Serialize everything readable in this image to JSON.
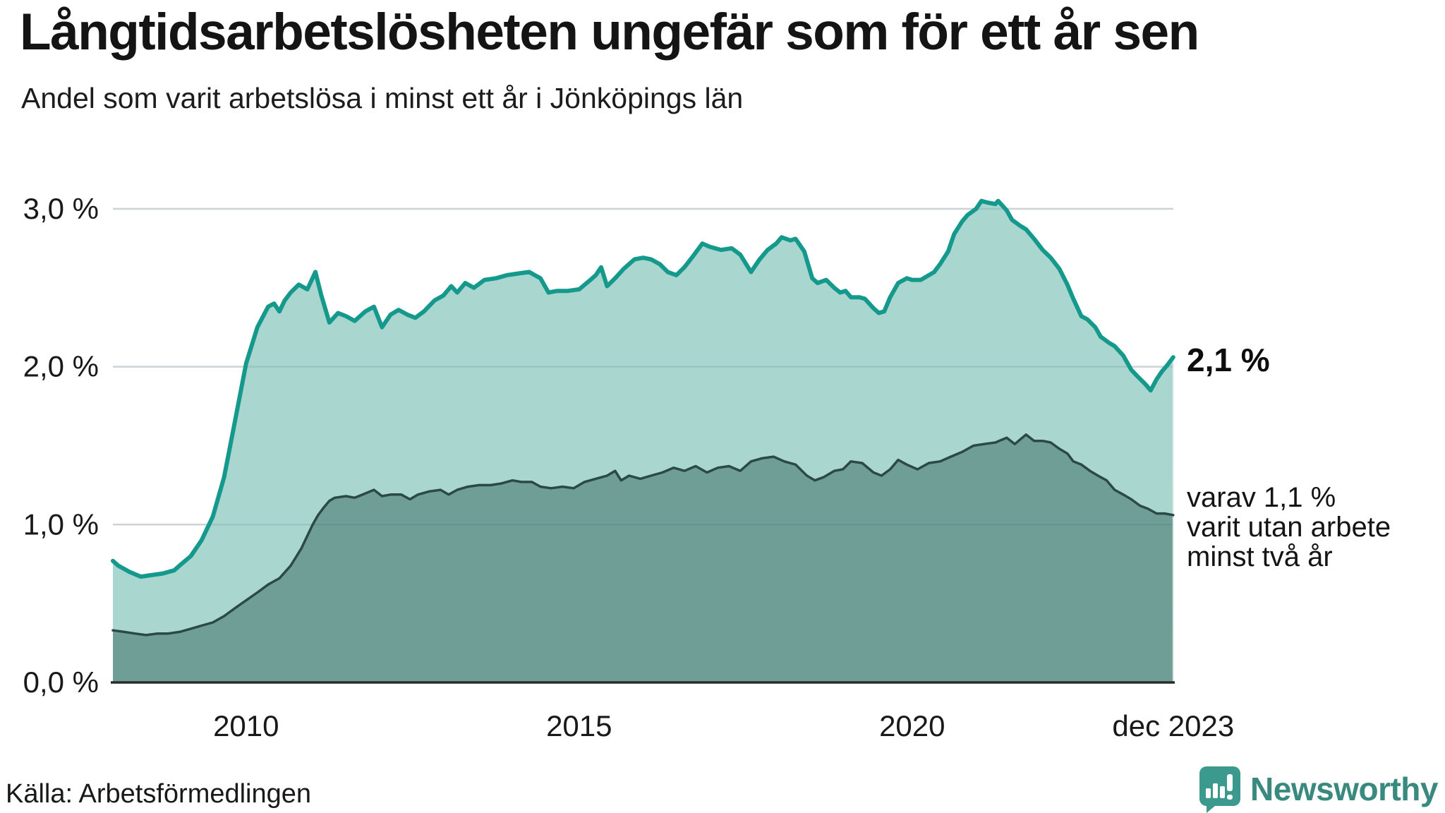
{
  "chart_data": {
    "type": "area",
    "title": "Långtidsarbetslösheten ungefär som för ett år sen",
    "subtitle": "Andel som varit arbetslösa i minst ett år i Jönköpings län",
    "unit": "%",
    "x_axis": {
      "start": 2008,
      "end": 2023.92,
      "ticks": [
        {
          "label": "2010",
          "year": 2010
        },
        {
          "label": "2015",
          "year": 2015
        },
        {
          "label": "2020",
          "year": 2020
        },
        {
          "label": "dec 2023",
          "year": 2023.92
        }
      ]
    },
    "y_axis": {
      "min": 0,
      "max": 3.05,
      "grid": true,
      "ticks": [
        {
          "label": "3,0 %",
          "value": 3
        },
        {
          "label": "2,0 %",
          "value": 2
        },
        {
          "label": "1,0 %",
          "value": 1
        },
        {
          "label": "0,0 %",
          "value": 0
        }
      ]
    },
    "series": [
      {
        "name": "Andel arbetslösa minst ett år",
        "line_color": "#14998c",
        "fill_color": "#a9d6cf",
        "points": [
          [
            2008.0,
            0.77
          ],
          [
            2008.08,
            0.74
          ],
          [
            2008.25,
            0.7
          ],
          [
            2008.42,
            0.67
          ],
          [
            2008.58,
            0.68
          ],
          [
            2008.75,
            0.69
          ],
          [
            2008.92,
            0.71
          ],
          [
            2009.0,
            0.74
          ],
          [
            2009.17,
            0.8
          ],
          [
            2009.33,
            0.9
          ],
          [
            2009.5,
            1.05
          ],
          [
            2009.67,
            1.3
          ],
          [
            2009.83,
            1.65
          ],
          [
            2010.0,
            2.02
          ],
          [
            2010.17,
            2.25
          ],
          [
            2010.33,
            2.38
          ],
          [
            2010.42,
            2.4
          ],
          [
            2010.5,
            2.35
          ],
          [
            2010.58,
            2.42
          ],
          [
            2010.67,
            2.47
          ],
          [
            2010.79,
            2.52
          ],
          [
            2010.92,
            2.49
          ],
          [
            2011.04,
            2.6
          ],
          [
            2011.13,
            2.45
          ],
          [
            2011.25,
            2.28
          ],
          [
            2011.38,
            2.34
          ],
          [
            2011.5,
            2.32
          ],
          [
            2011.63,
            2.29
          ],
          [
            2011.79,
            2.35
          ],
          [
            2011.92,
            2.38
          ],
          [
            2012.04,
            2.25
          ],
          [
            2012.17,
            2.33
          ],
          [
            2012.29,
            2.36
          ],
          [
            2012.42,
            2.33
          ],
          [
            2012.54,
            2.31
          ],
          [
            2012.67,
            2.35
          ],
          [
            2012.83,
            2.42
          ],
          [
            2012.96,
            2.45
          ],
          [
            2013.08,
            2.51
          ],
          [
            2013.17,
            2.47
          ],
          [
            2013.29,
            2.53
          ],
          [
            2013.42,
            2.5
          ],
          [
            2013.58,
            2.55
          ],
          [
            2013.75,
            2.56
          ],
          [
            2013.92,
            2.58
          ],
          [
            2014.08,
            2.59
          ],
          [
            2014.25,
            2.6
          ],
          [
            2014.42,
            2.56
          ],
          [
            2014.54,
            2.47
          ],
          [
            2014.67,
            2.48
          ],
          [
            2014.83,
            2.48
          ],
          [
            2015.0,
            2.49
          ],
          [
            2015.17,
            2.55
          ],
          [
            2015.25,
            2.58
          ],
          [
            2015.33,
            2.63
          ],
          [
            2015.42,
            2.51
          ],
          [
            2015.54,
            2.56
          ],
          [
            2015.67,
            2.62
          ],
          [
            2015.83,
            2.68
          ],
          [
            2015.96,
            2.69
          ],
          [
            2016.08,
            2.68
          ],
          [
            2016.21,
            2.65
          ],
          [
            2016.33,
            2.6
          ],
          [
            2016.46,
            2.58
          ],
          [
            2016.58,
            2.63
          ],
          [
            2016.71,
            2.7
          ],
          [
            2016.85,
            2.78
          ],
          [
            2016.96,
            2.76
          ],
          [
            2017.13,
            2.74
          ],
          [
            2017.29,
            2.75
          ],
          [
            2017.42,
            2.71
          ],
          [
            2017.58,
            2.6
          ],
          [
            2017.71,
            2.68
          ],
          [
            2017.83,
            2.74
          ],
          [
            2017.96,
            2.78
          ],
          [
            2018.04,
            2.82
          ],
          [
            2018.17,
            2.8
          ],
          [
            2018.25,
            2.81
          ],
          [
            2018.38,
            2.73
          ],
          [
            2018.5,
            2.56
          ],
          [
            2018.58,
            2.53
          ],
          [
            2018.71,
            2.55
          ],
          [
            2018.83,
            2.5
          ],
          [
            2018.92,
            2.47
          ],
          [
            2019.0,
            2.48
          ],
          [
            2019.08,
            2.44
          ],
          [
            2019.21,
            2.44
          ],
          [
            2019.29,
            2.43
          ],
          [
            2019.42,
            2.37
          ],
          [
            2019.5,
            2.34
          ],
          [
            2019.58,
            2.35
          ],
          [
            2019.67,
            2.44
          ],
          [
            2019.79,
            2.53
          ],
          [
            2019.92,
            2.56
          ],
          [
            2020.0,
            2.55
          ],
          [
            2020.13,
            2.55
          ],
          [
            2020.25,
            2.58
          ],
          [
            2020.33,
            2.6
          ],
          [
            2020.42,
            2.65
          ],
          [
            2020.54,
            2.73
          ],
          [
            2020.63,
            2.84
          ],
          [
            2020.75,
            2.92
          ],
          [
            2020.83,
            2.96
          ],
          [
            2020.96,
            3.0
          ],
          [
            2021.04,
            3.05
          ],
          [
            2021.13,
            3.04
          ],
          [
            2021.25,
            3.03
          ],
          [
            2021.29,
            3.05
          ],
          [
            2021.42,
            2.99
          ],
          [
            2021.5,
            2.93
          ],
          [
            2021.63,
            2.89
          ],
          [
            2021.71,
            2.87
          ],
          [
            2021.83,
            2.81
          ],
          [
            2021.96,
            2.74
          ],
          [
            2022.08,
            2.69
          ],
          [
            2022.21,
            2.62
          ],
          [
            2022.33,
            2.52
          ],
          [
            2022.42,
            2.43
          ],
          [
            2022.54,
            2.32
          ],
          [
            2022.63,
            2.3
          ],
          [
            2022.75,
            2.25
          ],
          [
            2022.83,
            2.19
          ],
          [
            2022.96,
            2.15
          ],
          [
            2023.04,
            2.13
          ],
          [
            2023.17,
            2.07
          ],
          [
            2023.29,
            1.98
          ],
          [
            2023.38,
            1.94
          ],
          [
            2023.5,
            1.89
          ],
          [
            2023.58,
            1.85
          ],
          [
            2023.67,
            1.92
          ],
          [
            2023.75,
            1.97
          ],
          [
            2023.83,
            2.01
          ],
          [
            2023.92,
            2.06
          ]
        ]
      },
      {
        "name": "Andel arbetslösa minst två år",
        "line_color": "#2b4a45",
        "fill_color": "#6f9e97",
        "points": [
          [
            2008.0,
            0.33
          ],
          [
            2008.17,
            0.32
          ],
          [
            2008.33,
            0.31
          ],
          [
            2008.5,
            0.3
          ],
          [
            2008.67,
            0.31
          ],
          [
            2008.83,
            0.31
          ],
          [
            2009.0,
            0.32
          ],
          [
            2009.17,
            0.34
          ],
          [
            2009.33,
            0.36
          ],
          [
            2009.5,
            0.38
          ],
          [
            2009.67,
            0.42
          ],
          [
            2009.83,
            0.47
          ],
          [
            2010.0,
            0.52
          ],
          [
            2010.17,
            0.57
          ],
          [
            2010.33,
            0.62
          ],
          [
            2010.5,
            0.66
          ],
          [
            2010.67,
            0.74
          ],
          [
            2010.83,
            0.85
          ],
          [
            2011.0,
            1.0
          ],
          [
            2011.08,
            1.06
          ],
          [
            2011.17,
            1.11
          ],
          [
            2011.25,
            1.15
          ],
          [
            2011.33,
            1.17
          ],
          [
            2011.5,
            1.18
          ],
          [
            2011.63,
            1.17
          ],
          [
            2011.75,
            1.19
          ],
          [
            2011.92,
            1.22
          ],
          [
            2012.04,
            1.18
          ],
          [
            2012.17,
            1.19
          ],
          [
            2012.33,
            1.19
          ],
          [
            2012.46,
            1.16
          ],
          [
            2012.58,
            1.19
          ],
          [
            2012.75,
            1.21
          ],
          [
            2012.92,
            1.22
          ],
          [
            2013.04,
            1.19
          ],
          [
            2013.17,
            1.22
          ],
          [
            2013.33,
            1.24
          ],
          [
            2013.5,
            1.25
          ],
          [
            2013.67,
            1.25
          ],
          [
            2013.83,
            1.26
          ],
          [
            2014.0,
            1.28
          ],
          [
            2014.13,
            1.27
          ],
          [
            2014.29,
            1.27
          ],
          [
            2014.42,
            1.24
          ],
          [
            2014.58,
            1.23
          ],
          [
            2014.75,
            1.24
          ],
          [
            2014.92,
            1.23
          ],
          [
            2015.08,
            1.27
          ],
          [
            2015.25,
            1.29
          ],
          [
            2015.42,
            1.31
          ],
          [
            2015.54,
            1.34
          ],
          [
            2015.63,
            1.28
          ],
          [
            2015.75,
            1.31
          ],
          [
            2015.92,
            1.29
          ],
          [
            2016.08,
            1.31
          ],
          [
            2016.25,
            1.33
          ],
          [
            2016.42,
            1.36
          ],
          [
            2016.58,
            1.34
          ],
          [
            2016.75,
            1.37
          ],
          [
            2016.92,
            1.33
          ],
          [
            2017.08,
            1.36
          ],
          [
            2017.25,
            1.37
          ],
          [
            2017.42,
            1.34
          ],
          [
            2017.58,
            1.4
          ],
          [
            2017.75,
            1.42
          ],
          [
            2017.92,
            1.43
          ],
          [
            2018.08,
            1.4
          ],
          [
            2018.25,
            1.38
          ],
          [
            2018.42,
            1.31
          ],
          [
            2018.54,
            1.28
          ],
          [
            2018.67,
            1.3
          ],
          [
            2018.83,
            1.34
          ],
          [
            2018.96,
            1.35
          ],
          [
            2019.08,
            1.4
          ],
          [
            2019.25,
            1.39
          ],
          [
            2019.42,
            1.33
          ],
          [
            2019.54,
            1.31
          ],
          [
            2019.67,
            1.35
          ],
          [
            2019.79,
            1.41
          ],
          [
            2019.92,
            1.38
          ],
          [
            2020.08,
            1.35
          ],
          [
            2020.25,
            1.39
          ],
          [
            2020.42,
            1.4
          ],
          [
            2020.58,
            1.43
          ],
          [
            2020.75,
            1.46
          ],
          [
            2020.92,
            1.5
          ],
          [
            2021.08,
            1.51
          ],
          [
            2021.25,
            1.52
          ],
          [
            2021.42,
            1.55
          ],
          [
            2021.54,
            1.51
          ],
          [
            2021.71,
            1.57
          ],
          [
            2021.83,
            1.53
          ],
          [
            2021.96,
            1.53
          ],
          [
            2022.08,
            1.52
          ],
          [
            2022.21,
            1.48
          ],
          [
            2022.33,
            1.45
          ],
          [
            2022.42,
            1.4
          ],
          [
            2022.54,
            1.38
          ],
          [
            2022.67,
            1.34
          ],
          [
            2022.79,
            1.31
          ],
          [
            2022.92,
            1.28
          ],
          [
            2023.04,
            1.22
          ],
          [
            2023.17,
            1.19
          ],
          [
            2023.29,
            1.16
          ],
          [
            2023.42,
            1.12
          ],
          [
            2023.54,
            1.1
          ],
          [
            2023.67,
            1.07
          ],
          [
            2023.79,
            1.07
          ],
          [
            2023.92,
            1.06
          ]
        ]
      }
    ],
    "annotations": {
      "latest_value": "2,1 %",
      "secondary_lines": [
        "varav 1,1 %",
        "varit utan arbete",
        "minst två år"
      ]
    },
    "colors": {
      "grid": "#e3e4e8",
      "axis": "#2b2b2b",
      "logo_teal": "#3b998e",
      "logo_text": "#39897f"
    }
  },
  "footer": {
    "source": "Källa: Arbetsförmedlingen",
    "logo_text": "Newsworthy"
  }
}
